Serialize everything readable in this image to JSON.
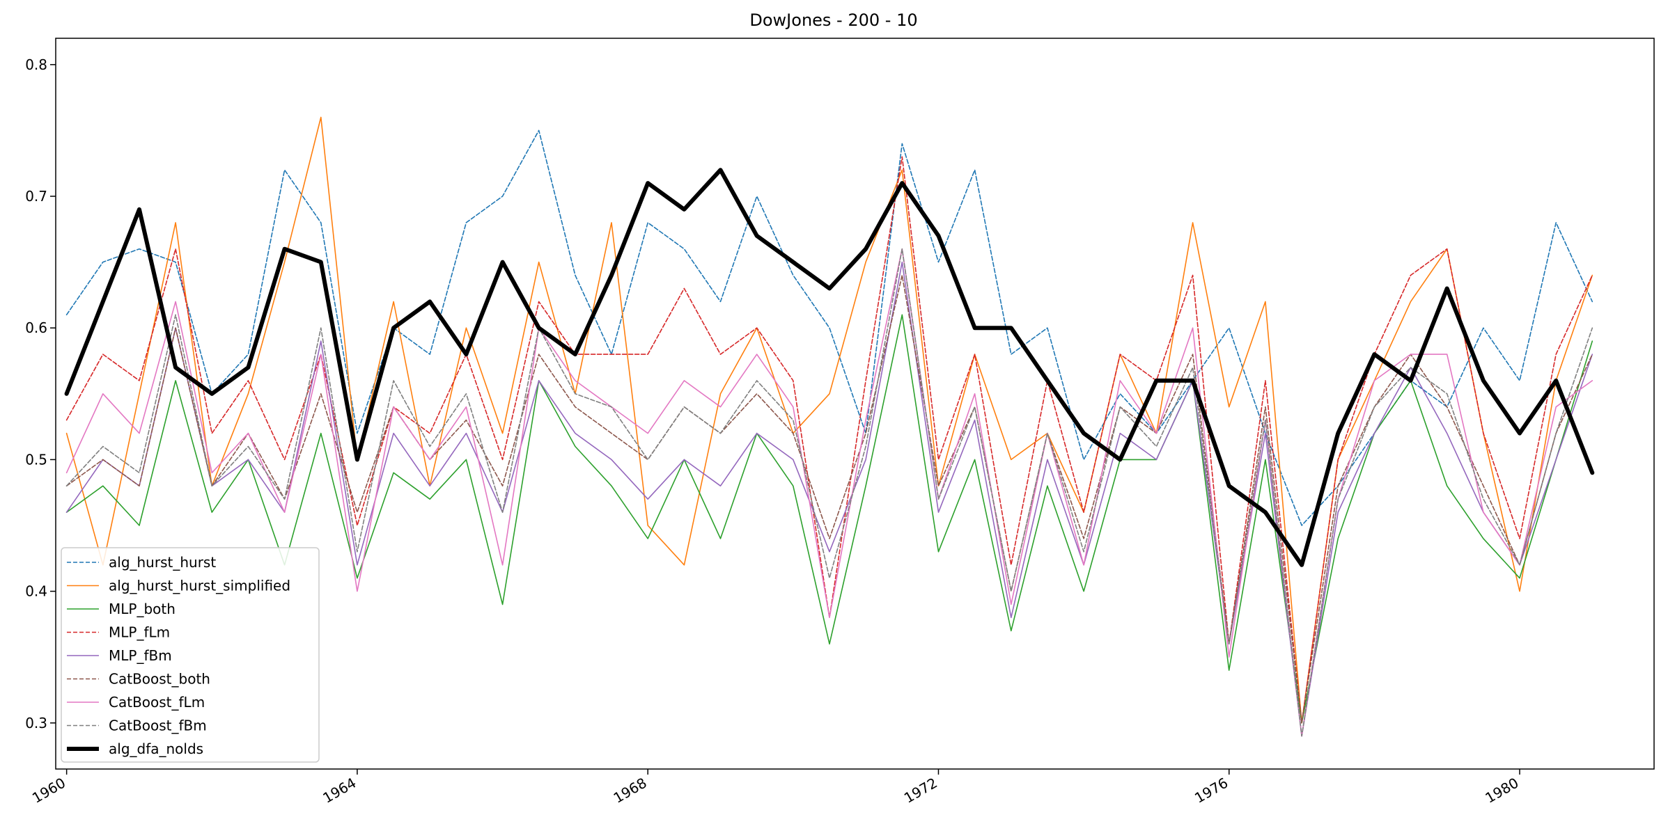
{
  "chart_data": {
    "type": "line",
    "title": "DowJones - 200 - 10",
    "xlabel": "",
    "ylabel": "",
    "xlim": [
      1959.85,
      1981.85
    ],
    "ylim": [
      0.265,
      0.82
    ],
    "x_ticks": [
      1960,
      1964,
      1968,
      1972,
      1976,
      1980
    ],
    "x_tick_labels": [
      "1960",
      "1964",
      "1968",
      "1972",
      "1976",
      "1980"
    ],
    "y_ticks": [
      0.3,
      0.4,
      0.5,
      0.6,
      0.7,
      0.8
    ],
    "y_tick_labels": [
      "0.3",
      "0.4",
      "0.5",
      "0.6",
      "0.7",
      "0.8"
    ],
    "grid": false,
    "legend_position": "lower-left",
    "series": [
      {
        "name": "alg_hurst_hurst",
        "color": "#1f77b4",
        "dash": "dashed",
        "width": "thin",
        "x": [
          1960.0,
          1960.5,
          1961.0,
          1961.5,
          1962.0,
          1962.5,
          1963.0,
          1963.5,
          1964.0,
          1964.5,
          1965.0,
          1965.5,
          1966.0,
          1966.5,
          1967.0,
          1967.5,
          1968.0,
          1968.5,
          1969.0,
          1969.5,
          1970.0,
          1970.5,
          1971.0,
          1971.5,
          1972.0,
          1972.5,
          1973.0,
          1973.5,
          1974.0,
          1974.5,
          1975.0,
          1975.5,
          1976.0,
          1976.5,
          1977.0,
          1977.5,
          1978.0,
          1978.5,
          1979.0,
          1979.5,
          1980.0,
          1980.5,
          1981.0
        ],
        "y": [
          0.61,
          0.65,
          0.66,
          0.65,
          0.55,
          0.58,
          0.72,
          0.68,
          0.52,
          0.6,
          0.58,
          0.68,
          0.7,
          0.75,
          0.64,
          0.58,
          0.68,
          0.66,
          0.62,
          0.7,
          0.64,
          0.6,
          0.52,
          0.74,
          0.65,
          0.72,
          0.58,
          0.6,
          0.5,
          0.55,
          0.52,
          0.56,
          0.6,
          0.52,
          0.45,
          0.48,
          0.52,
          0.56,
          0.54,
          0.6,
          0.56,
          0.68,
          0.62
        ]
      },
      {
        "name": "alg_hurst_hurst_simplified",
        "color": "#ff7f0e",
        "dash": "solid",
        "width": "thin",
        "x": [
          1960.0,
          1960.5,
          1961.0,
          1961.5,
          1962.0,
          1962.5,
          1963.0,
          1963.5,
          1964.0,
          1964.5,
          1965.0,
          1965.5,
          1966.0,
          1966.5,
          1967.0,
          1967.5,
          1968.0,
          1968.5,
          1969.0,
          1969.5,
          1970.0,
          1970.5,
          1971.0,
          1971.5,
          1972.0,
          1972.5,
          1973.0,
          1973.5,
          1974.0,
          1974.5,
          1975.0,
          1975.5,
          1976.0,
          1976.5,
          1977.0,
          1977.5,
          1978.0,
          1978.5,
          1979.0,
          1979.5,
          1980.0,
          1980.5,
          1981.0
        ],
        "y": [
          0.52,
          0.42,
          0.55,
          0.68,
          0.48,
          0.55,
          0.65,
          0.76,
          0.5,
          0.62,
          0.48,
          0.6,
          0.52,
          0.65,
          0.55,
          0.68,
          0.45,
          0.42,
          0.55,
          0.6,
          0.52,
          0.55,
          0.65,
          0.72,
          0.48,
          0.58,
          0.5,
          0.52,
          0.46,
          0.58,
          0.52,
          0.68,
          0.54,
          0.62,
          0.3,
          0.5,
          0.56,
          0.62,
          0.66,
          0.52,
          0.4,
          0.56,
          0.64
        ]
      },
      {
        "name": "MLP_both",
        "color": "#2ca02c",
        "dash": "solid",
        "width": "thin",
        "x": [
          1960.0,
          1960.5,
          1961.0,
          1961.5,
          1962.0,
          1962.5,
          1963.0,
          1963.5,
          1964.0,
          1964.5,
          1965.0,
          1965.5,
          1966.0,
          1966.5,
          1967.0,
          1967.5,
          1968.0,
          1968.5,
          1969.0,
          1969.5,
          1970.0,
          1970.5,
          1971.0,
          1971.5,
          1972.0,
          1972.5,
          1973.0,
          1973.5,
          1974.0,
          1974.5,
          1975.0,
          1975.5,
          1976.0,
          1976.5,
          1977.0,
          1977.5,
          1978.0,
          1978.5,
          1979.0,
          1979.5,
          1980.0,
          1980.5,
          1981.0
        ],
        "y": [
          0.46,
          0.48,
          0.45,
          0.56,
          0.46,
          0.5,
          0.42,
          0.52,
          0.41,
          0.49,
          0.47,
          0.5,
          0.39,
          0.56,
          0.51,
          0.48,
          0.44,
          0.5,
          0.44,
          0.52,
          0.48,
          0.36,
          0.48,
          0.61,
          0.43,
          0.5,
          0.37,
          0.48,
          0.4,
          0.5,
          0.5,
          0.56,
          0.34,
          0.5,
          0.3,
          0.44,
          0.52,
          0.56,
          0.48,
          0.44,
          0.41,
          0.5,
          0.59
        ]
      },
      {
        "name": "MLP_fLm",
        "color": "#d62728",
        "dash": "dashed",
        "width": "thin",
        "x": [
          1960.0,
          1960.5,
          1961.0,
          1961.5,
          1962.0,
          1962.5,
          1963.0,
          1963.5,
          1964.0,
          1964.5,
          1965.0,
          1965.5,
          1966.0,
          1966.5,
          1967.0,
          1967.5,
          1968.0,
          1968.5,
          1969.0,
          1969.5,
          1970.0,
          1970.5,
          1971.0,
          1971.5,
          1972.0,
          1972.5,
          1973.0,
          1973.5,
          1974.0,
          1974.5,
          1975.0,
          1975.5,
          1976.0,
          1976.5,
          1977.0,
          1977.5,
          1978.0,
          1978.5,
          1979.0,
          1979.5,
          1980.0,
          1980.5,
          1981.0
        ],
        "y": [
          0.53,
          0.58,
          0.56,
          0.66,
          0.52,
          0.56,
          0.5,
          0.58,
          0.45,
          0.54,
          0.52,
          0.58,
          0.5,
          0.62,
          0.58,
          0.58,
          0.58,
          0.63,
          0.58,
          0.6,
          0.56,
          0.38,
          0.56,
          0.73,
          0.5,
          0.58,
          0.42,
          0.56,
          0.46,
          0.58,
          0.56,
          0.64,
          0.36,
          0.56,
          0.3,
          0.5,
          0.58,
          0.64,
          0.66,
          0.52,
          0.44,
          0.58,
          0.64
        ]
      },
      {
        "name": "MLP_fBm",
        "color": "#9467bd",
        "dash": "solid",
        "width": "thin",
        "x": [
          1960.0,
          1960.5,
          1961.0,
          1961.5,
          1962.0,
          1962.5,
          1963.0,
          1963.5,
          1964.0,
          1964.5,
          1965.0,
          1965.5,
          1966.0,
          1966.5,
          1967.0,
          1967.5,
          1968.0,
          1968.5,
          1969.0,
          1969.5,
          1970.0,
          1970.5,
          1971.0,
          1971.5,
          1972.0,
          1972.5,
          1973.0,
          1973.5,
          1974.0,
          1974.5,
          1975.0,
          1975.5,
          1976.0,
          1976.5,
          1977.0,
          1977.5,
          1978.0,
          1978.5,
          1979.0,
          1979.5,
          1980.0,
          1980.5,
          1981.0
        ],
        "y": [
          0.46,
          0.5,
          0.48,
          0.6,
          0.48,
          0.5,
          0.46,
          0.59,
          0.42,
          0.52,
          0.48,
          0.52,
          0.46,
          0.56,
          0.52,
          0.5,
          0.47,
          0.5,
          0.48,
          0.52,
          0.5,
          0.43,
          0.5,
          0.65,
          0.46,
          0.53,
          0.38,
          0.5,
          0.42,
          0.52,
          0.5,
          0.56,
          0.36,
          0.52,
          0.29,
          0.46,
          0.52,
          0.57,
          0.52,
          0.46,
          0.42,
          0.5,
          0.58
        ]
      },
      {
        "name": "CatBoost_both",
        "color": "#8c564b",
        "dash": "dashed",
        "width": "thin",
        "x": [
          1960.0,
          1960.5,
          1961.0,
          1961.5,
          1962.0,
          1962.5,
          1963.0,
          1963.5,
          1964.0,
          1964.5,
          1965.0,
          1965.5,
          1966.0,
          1966.5,
          1967.0,
          1967.5,
          1968.0,
          1968.5,
          1969.0,
          1969.5,
          1970.0,
          1970.5,
          1971.0,
          1971.5,
          1972.0,
          1972.5,
          1973.0,
          1973.5,
          1974.0,
          1974.5,
          1975.0,
          1975.5,
          1976.0,
          1976.5,
          1977.0,
          1977.5,
          1978.0,
          1978.5,
          1979.0,
          1979.5,
          1980.0,
          1980.5,
          1981.0
        ],
        "y": [
          0.48,
          0.5,
          0.48,
          0.6,
          0.48,
          0.52,
          0.47,
          0.55,
          0.46,
          0.54,
          0.5,
          0.53,
          0.48,
          0.58,
          0.54,
          0.52,
          0.5,
          0.54,
          0.52,
          0.55,
          0.52,
          0.44,
          0.52,
          0.64,
          0.48,
          0.54,
          0.4,
          0.52,
          0.44,
          0.54,
          0.52,
          0.58,
          0.36,
          0.54,
          0.3,
          0.48,
          0.54,
          0.58,
          0.54,
          0.48,
          0.42,
          0.52,
          0.58
        ]
      },
      {
        "name": "CatBoost_fLm",
        "color": "#e377c2",
        "dash": "solid",
        "width": "thin",
        "x": [
          1960.0,
          1960.5,
          1961.0,
          1961.5,
          1962.0,
          1962.5,
          1963.0,
          1963.5,
          1964.0,
          1964.5,
          1965.0,
          1965.5,
          1966.0,
          1966.5,
          1967.0,
          1967.5,
          1968.0,
          1968.5,
          1969.0,
          1969.5,
          1970.0,
          1970.5,
          1971.0,
          1971.5,
          1972.0,
          1972.5,
          1973.0,
          1973.5,
          1974.0,
          1974.5,
          1975.0,
          1975.5,
          1976.0,
          1976.5,
          1977.0,
          1977.5,
          1978.0,
          1978.5,
          1979.0,
          1979.5,
          1980.0,
          1980.5,
          1981.0
        ],
        "y": [
          0.49,
          0.55,
          0.52,
          0.62,
          0.49,
          0.52,
          0.46,
          0.58,
          0.4,
          0.54,
          0.5,
          0.54,
          0.42,
          0.6,
          0.56,
          0.54,
          0.52,
          0.56,
          0.54,
          0.58,
          0.54,
          0.38,
          0.53,
          0.66,
          0.47,
          0.55,
          0.39,
          0.52,
          0.42,
          0.56,
          0.52,
          0.6,
          0.35,
          0.53,
          0.29,
          0.47,
          0.56,
          0.58,
          0.58,
          0.46,
          0.42,
          0.54,
          0.56
        ]
      },
      {
        "name": "CatBoost_fBm",
        "color": "#7f7f7f",
        "dash": "dashed",
        "width": "thin",
        "x": [
          1960.0,
          1960.5,
          1961.0,
          1961.5,
          1962.0,
          1962.5,
          1963.0,
          1963.5,
          1964.0,
          1964.5,
          1965.0,
          1965.5,
          1966.0,
          1966.5,
          1967.0,
          1967.5,
          1968.0,
          1968.5,
          1969.0,
          1969.5,
          1970.0,
          1970.5,
          1971.0,
          1971.5,
          1972.0,
          1972.5,
          1973.0,
          1973.5,
          1974.0,
          1974.5,
          1975.0,
          1975.5,
          1976.0,
          1976.5,
          1977.0,
          1977.5,
          1978.0,
          1978.5,
          1979.0,
          1979.5,
          1980.0,
          1980.5,
          1981.0
        ],
        "y": [
          0.48,
          0.51,
          0.49,
          0.61,
          0.48,
          0.51,
          0.47,
          0.6,
          0.43,
          0.56,
          0.51,
          0.55,
          0.46,
          0.6,
          0.55,
          0.54,
          0.5,
          0.54,
          0.52,
          0.56,
          0.53,
          0.41,
          0.51,
          0.66,
          0.47,
          0.54,
          0.4,
          0.52,
          0.43,
          0.54,
          0.51,
          0.57,
          0.36,
          0.53,
          0.29,
          0.47,
          0.54,
          0.57,
          0.55,
          0.47,
          0.42,
          0.52,
          0.6
        ]
      },
      {
        "name": "alg_dfa_nolds",
        "color": "#000000",
        "dash": "solid",
        "width": "thick",
        "x": [
          1960.0,
          1960.5,
          1961.0,
          1961.5,
          1962.0,
          1962.5,
          1963.0,
          1963.5,
          1964.0,
          1964.5,
          1965.0,
          1965.5,
          1966.0,
          1966.5,
          1967.0,
          1967.5,
          1968.0,
          1968.5,
          1969.0,
          1969.5,
          1970.0,
          1970.5,
          1971.0,
          1971.5,
          1972.0,
          1972.5,
          1973.0,
          1973.5,
          1974.0,
          1974.5,
          1975.0,
          1975.5,
          1976.0,
          1976.5,
          1977.0,
          1977.5,
          1978.0,
          1978.5,
          1979.0,
          1979.5,
          1980.0,
          1980.5,
          1981.0
        ],
        "y": [
          0.55,
          0.62,
          0.69,
          0.57,
          0.55,
          0.57,
          0.66,
          0.65,
          0.5,
          0.6,
          0.62,
          0.58,
          0.65,
          0.6,
          0.58,
          0.64,
          0.71,
          0.69,
          0.72,
          0.67,
          0.65,
          0.63,
          0.66,
          0.71,
          0.67,
          0.6,
          0.6,
          0.56,
          0.52,
          0.5,
          0.56,
          0.56,
          0.48,
          0.46,
          0.42,
          0.52,
          0.58,
          0.56,
          0.63,
          0.56,
          0.52,
          0.56,
          0.49
        ]
      }
    ]
  }
}
